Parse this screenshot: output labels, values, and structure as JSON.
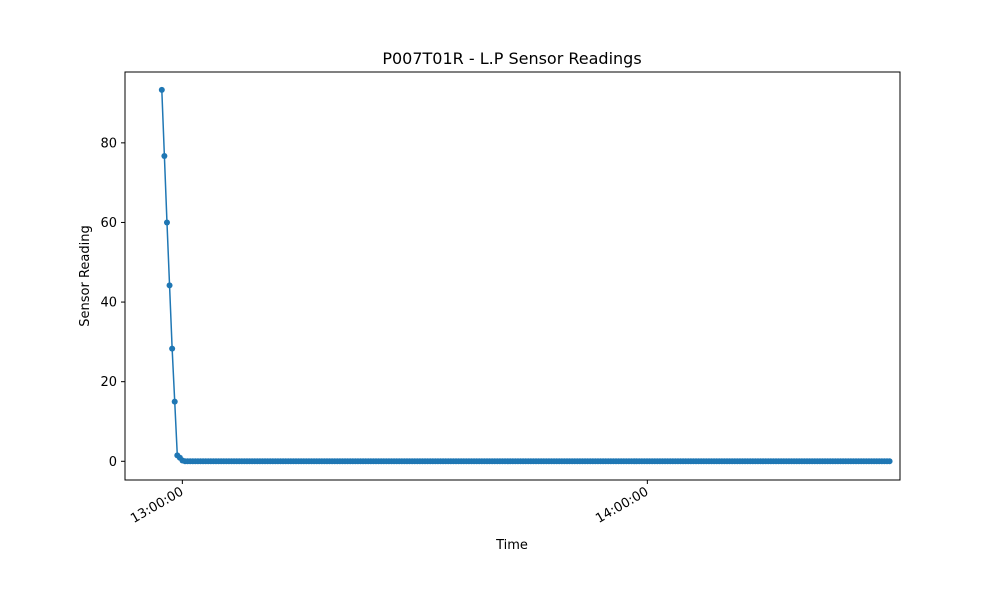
{
  "chart_data": {
    "type": "line",
    "title": "P007T01R - L.P Sensor Readings",
    "xlabel": "Time",
    "ylabel": "Sensor Reading",
    "x_ticks": [
      "13:00:00",
      "14:00:00"
    ],
    "x_tick_minutes": [
      0,
      60
    ],
    "y_ticks": [
      0,
      20,
      40,
      60,
      80
    ],
    "xlim_minutes": [
      -7.4,
      92.6
    ],
    "ylim": [
      -4.7,
      97.8
    ],
    "grid": false,
    "series": [
      {
        "color": "#1f77b4",
        "marker": "circle",
        "x_start_minutes": -2.65,
        "x_step_minutes": 0.333,
        "leading_values": [
          93.3,
          76.7,
          60.0,
          44.2,
          28.3,
          15.0,
          1.5,
          0.9,
          0.2
        ],
        "tail_value": 0.0,
        "tail_count": 274
      }
    ]
  }
}
